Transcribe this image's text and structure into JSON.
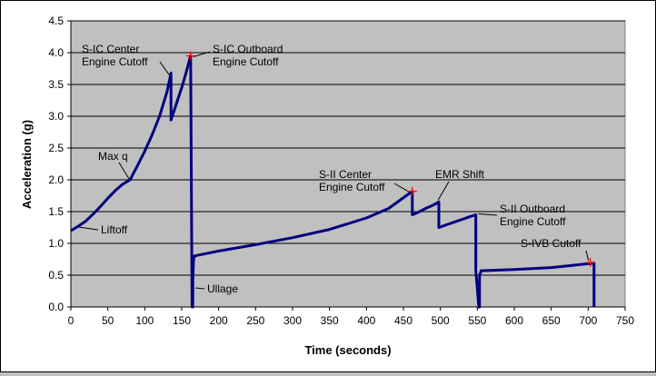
{
  "chart_data": {
    "type": "line",
    "title": "",
    "xlabel": "Time (seconds)",
    "ylabel": "Acceleration (g)",
    "xlim": [
      0,
      750
    ],
    "ylim": [
      0,
      4.5
    ],
    "xticks": [
      0,
      50,
      100,
      150,
      200,
      250,
      300,
      350,
      400,
      450,
      500,
      550,
      600,
      650,
      700,
      750
    ],
    "yticks": [
      "0.0",
      "0.5",
      "1.0",
      "1.5",
      "2.0",
      "2.5",
      "3.0",
      "3.5",
      "4.0",
      "4.5"
    ],
    "grid": true,
    "legend": "none",
    "colors": {
      "plot_bg": "#c0c0c0",
      "line": "#000080",
      "marker": "#ff0000",
      "grid": "#000000"
    },
    "series": [
      {
        "x": [
          0,
          10,
          20,
          30,
          40,
          50,
          60,
          70,
          80,
          90,
          100,
          110,
          120,
          130,
          135.5,
          135.5,
          140,
          150,
          155,
          162,
          163,
          163,
          164,
          165,
          165,
          166,
          167,
          167,
          170,
          200,
          250,
          300,
          350,
          400,
          430,
          462,
          462,
          470,
          480,
          490,
          498,
          498,
          510,
          520,
          530,
          540,
          548,
          548,
          552,
          553,
          553,
          555,
          555,
          600,
          650,
          700,
          708,
          708
        ],
        "y": [
          1.2,
          1.27,
          1.35,
          1.46,
          1.58,
          1.71,
          1.83,
          1.93,
          2.0,
          2.22,
          2.45,
          2.71,
          3.0,
          3.38,
          3.68,
          2.94,
          3.1,
          3.45,
          3.65,
          3.95,
          2.0,
          1.95,
          0.0,
          0.0,
          0.4,
          0.75,
          0.78,
          0.8,
          0.81,
          0.88,
          0.98,
          1.09,
          1.22,
          1.4,
          1.55,
          1.82,
          1.45,
          1.49,
          1.55,
          1.6,
          1.65,
          1.25,
          1.3,
          1.34,
          1.38,
          1.42,
          1.45,
          0.57,
          0.0,
          0.0,
          0.5,
          0.56,
          0.57,
          0.59,
          0.62,
          0.68,
          0.69,
          0.0
        ]
      }
    ],
    "markers": [
      {
        "x": 162,
        "y": 3.95
      },
      {
        "x": 462,
        "y": 1.82
      },
      {
        "x": 703,
        "y": 0.7
      }
    ],
    "annotations": [
      {
        "lines": [
          "S-IC Center",
          "Engine Cutoff"
        ],
        "x": 135.5,
        "y": 3.68
      },
      {
        "lines": [
          "S-IC Outboard",
          "Engine Cutoff"
        ],
        "x": 162,
        "y": 3.95
      },
      {
        "lines": [
          "Max q"
        ],
        "x": 80,
        "y": 2.0
      },
      {
        "lines": [
          "Liftoff"
        ],
        "x": 10,
        "y": 1.27
      },
      {
        "lines": [
          "Ullage"
        ],
        "x": 165,
        "y": 0.3
      },
      {
        "lines": [
          "S-II Center",
          "Engine Cutoff"
        ],
        "x": 462,
        "y": 1.82
      },
      {
        "lines": [
          "EMR Shift"
        ],
        "x": 498,
        "y": 1.65
      },
      {
        "lines": [
          "S-II Outboard",
          "Engine Cutoff"
        ],
        "x": 548,
        "y": 1.45
      },
      {
        "lines": [
          "S-IVB Cutoff"
        ],
        "x": 703,
        "y": 0.7
      }
    ]
  }
}
